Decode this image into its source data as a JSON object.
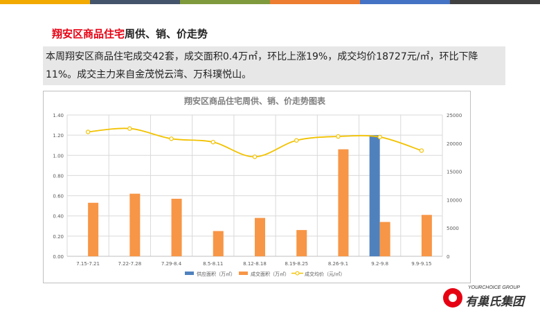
{
  "header_bar_colors": [
    "#f2a900",
    "#44546a",
    "#7f9a3d",
    "#ed7d31",
    "#4472c4",
    "#404040"
  ],
  "slide": {
    "title_highlight": "翔安区商品住宅",
    "title_rest": "周供、销、价走势",
    "summary": "本周翔安区商品住宅成交42套，成交面积0.4万㎡，环比上涨19%，成交均价18727元/㎡，环比下降11%。成交主力来自金茂悦云湾、万科璞悦山。"
  },
  "logo": {
    "en": "YOURCHOICE GROUP",
    "cn": "有巢氏集团"
  },
  "chart_data": {
    "type": "bar",
    "title": "翔安区商品住宅周供、销、价走势图表",
    "categories": [
      "7.15-7.21",
      "7.22-7.28",
      "7.29-8.4",
      "8.5-8.11",
      "8.12-8.18",
      "8.19-8.25",
      "8.26-9.1",
      "9.2-9.8",
      "9.9-9.15"
    ],
    "series": [
      {
        "name": "供应面积（万㎡）",
        "kind": "bar",
        "axis": "left",
        "color": "#4f81bd",
        "values": [
          0,
          0,
          0,
          0,
          0,
          0,
          0,
          1.2,
          0
        ]
      },
      {
        "name": "成交面积（万㎡）",
        "kind": "bar",
        "axis": "left",
        "color": "#f79646",
        "values": [
          0.53,
          0.62,
          0.57,
          0.25,
          0.38,
          0.26,
          1.06,
          0.34,
          0.41
        ]
      },
      {
        "name": "成交均价（元/㎡）",
        "kind": "line",
        "axis": "right",
        "color": "#f2c200",
        "values": [
          22000,
          22600,
          20800,
          20200,
          17600,
          20500,
          21200,
          21100,
          18700
        ]
      }
    ],
    "y_left": {
      "min": 0,
      "max": 1.4,
      "step": 0.2,
      "tick_labels": [
        "0.00",
        "0.20",
        "0.40",
        "0.60",
        "0.80",
        "1.00",
        "1.20",
        "1.40"
      ]
    },
    "y_right": {
      "min": 0,
      "max": 25000,
      "step": 5000,
      "tick_labels": [
        "0",
        "5000",
        "10000",
        "15000",
        "20000",
        "25000"
      ]
    },
    "grid": true,
    "legend_position": "bottom"
  }
}
